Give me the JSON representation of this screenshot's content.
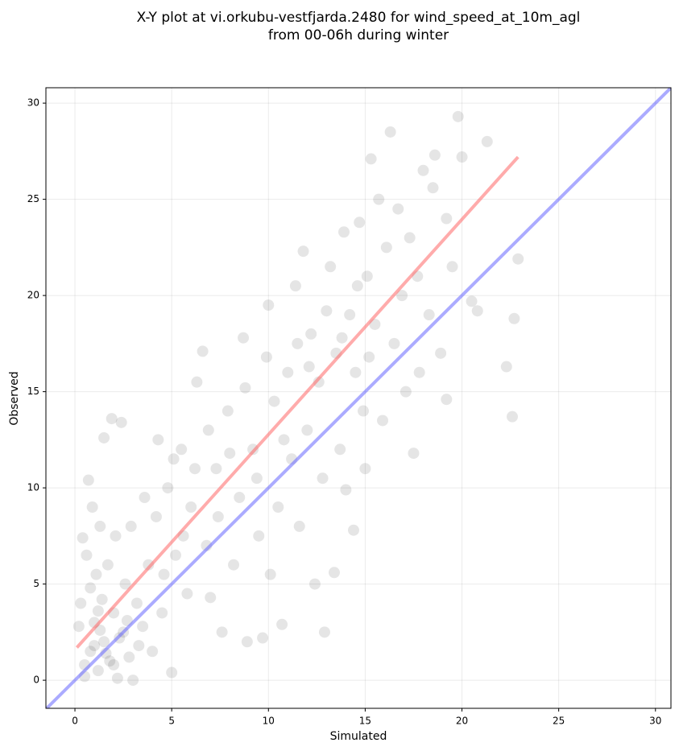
{
  "chart_data": {
    "type": "scatter",
    "title": [
      "X-Y plot at vi.orkubu-vestfjarda.2480 for wind_speed_at_10m_agl",
      "from 00-06h during winter"
    ],
    "x_label": "Simulated",
    "y_label": "Observed",
    "xlim": [
      -1.5,
      30.8
    ],
    "ylim": [
      -1.46,
      30.8
    ],
    "xticks": [
      0,
      5,
      10,
      15,
      20,
      25,
      30
    ],
    "yticks": [
      0,
      5,
      10,
      15,
      20,
      25,
      30
    ],
    "grid": true,
    "point_color": "#000000",
    "x": [
      0.5,
      0.8,
      1.0,
      1.2,
      1.5,
      1.8,
      2.0,
      2.2,
      0.3,
      0.6,
      1.1,
      1.4,
      1.7,
      2.5,
      2.8,
      3.0,
      0.9,
      1.5,
      1.9,
      2.4,
      0.4,
      0.7,
      1.3,
      2.1,
      2.6,
      3.2,
      3.5,
      3.8,
      4.0,
      4.2,
      4.5,
      4.8,
      5.0,
      5.2,
      5.5,
      5.8,
      6.0,
      6.3,
      6.6,
      6.8,
      7.0,
      7.3,
      7.6,
      7.9,
      8.2,
      8.5,
      8.7,
      8.9,
      9.2,
      9.5,
      9.7,
      10.0,
      10.1,
      10.3,
      10.5,
      10.7,
      11.0,
      11.2,
      11.4,
      11.6,
      11.8,
      12.0,
      12.2,
      12.4,
      12.6,
      12.8,
      12.9,
      13.2,
      13.4,
      13.5,
      13.7,
      13.9,
      14.0,
      14.2,
      14.4,
      14.5,
      14.7,
      14.9,
      15.0,
      15.1,
      15.3,
      15.5,
      15.7,
      15.9,
      16.1,
      16.3,
      16.5,
      16.7,
      16.9,
      17.1,
      17.3,
      17.5,
      17.7,
      17.8,
      18.0,
      18.3,
      18.5,
      18.6,
      18.9,
      19.2,
      19.2,
      19.5,
      19.8,
      20.0,
      20.5,
      20.8,
      21.3,
      22.3,
      22.6,
      22.7,
      22.9,
      0.2,
      0.5,
      1.0,
      1.3,
      1.6,
      2.0,
      2.3,
      2.7,
      3.3,
      0.8,
      1.2,
      2.9,
      3.6,
      4.3,
      4.6,
      5.1,
      5.6,
      6.2,
      6.9,
      7.4,
      8.0,
      8.8,
      9.4,
      9.9,
      10.8,
      11.5,
      12.1,
      13.0,
      13.8,
      14.6,
      15.2
    ],
    "values": [
      0.2,
      1.5,
      3.0,
      0.5,
      2.0,
      1.0,
      3.5,
      0.1,
      4.0,
      6.5,
      5.5,
      4.2,
      6.0,
      2.5,
      1.2,
      0.0,
      9.0,
      12.6,
      13.6,
      13.4,
      7.4,
      10.4,
      8.0,
      7.5,
      5.0,
      4.0,
      2.8,
      6.0,
      1.5,
      8.5,
      3.5,
      10.0,
      0.4,
      6.5,
      12.0,
      4.5,
      9.0,
      15.5,
      17.1,
      7.0,
      4.3,
      11.0,
      2.5,
      14.0,
      6.0,
      9.5,
      17.8,
      2.0,
      12.0,
      7.5,
      2.2,
      19.5,
      5.5,
      14.5,
      9.0,
      2.9,
      16.0,
      11.5,
      20.5,
      8.0,
      22.3,
      13.0,
      18.0,
      5.0,
      15.5,
      10.5,
      2.5,
      21.5,
      5.6,
      17.0,
      12.0,
      23.3,
      9.9,
      19.0,
      7.8,
      16.0,
      23.8,
      14.0,
      11.0,
      21.0,
      27.1,
      18.5,
      25.0,
      13.5,
      22.5,
      28.5,
      17.5,
      24.5,
      20.0,
      15.0,
      23.0,
      11.8,
      21.0,
      16.0,
      26.5,
      19.0,
      25.6,
      27.3,
      17.0,
      24.0,
      14.6,
      21.5,
      29.3,
      27.2,
      19.7,
      19.2,
      28.0,
      16.3,
      13.7,
      18.8,
      21.9,
      2.8,
      0.8,
      1.8,
      2.6,
      1.4,
      0.8,
      2.2,
      3.1,
      1.8,
      4.8,
      3.6,
      8.0,
      9.5,
      12.5,
      5.5,
      11.5,
      7.5,
      11.0,
      13.0,
      8.5,
      11.8,
      15.2,
      10.5,
      16.8,
      12.5,
      17.5,
      16.3,
      19.2,
      17.8,
      20.5,
      16.8
    ],
    "fit_line": {
      "color": "#ff6666",
      "x": [
        0.1,
        22.9
      ],
      "values": [
        1.7,
        27.2
      ]
    },
    "identity_line": {
      "color": "#6666ff",
      "x": [
        -1.5,
        30.8
      ],
      "values": [
        -1.5,
        30.8
      ]
    }
  }
}
